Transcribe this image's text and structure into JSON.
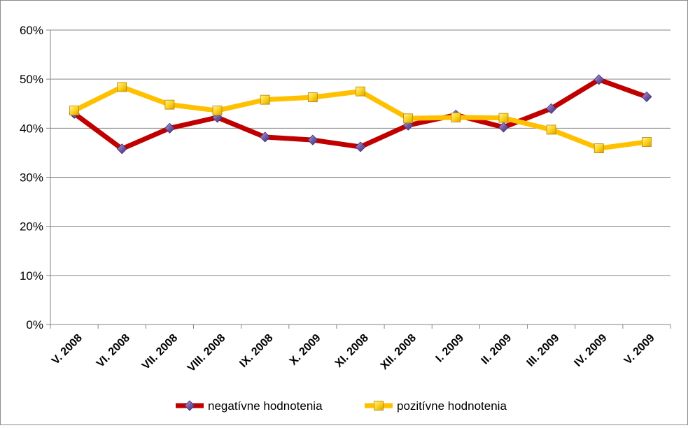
{
  "chart_data": {
    "type": "line",
    "categories": [
      "V. 2008",
      "VI. 2008",
      "VII. 2008",
      "VIII. 2008",
      "IX. 2008",
      "X. 2009",
      "XI. 2008",
      "XII. 2008",
      "I. 2009",
      "II. 2009",
      "III. 2009",
      "IV. 2009",
      "V. 2009"
    ],
    "series": [
      {
        "name": "negatívne hodnotenia",
        "color": "#c00000",
        "marker": "diamond",
        "marker_color": "#7b5fa8",
        "values": [
          43.0,
          35.8,
          40.0,
          42.2,
          38.2,
          37.6,
          36.2,
          40.6,
          42.7,
          40.2,
          44.0,
          49.9,
          46.4
        ]
      },
      {
        "name": "pozitívne hodnotenia",
        "color": "#ffc000",
        "marker": "square",
        "marker_color": "#ffd21f",
        "values": [
          43.6,
          48.4,
          44.8,
          43.6,
          45.8,
          46.3,
          47.5,
          42.0,
          42.2,
          42.1,
          39.7,
          35.9,
          37.2
        ]
      }
    ],
    "y_ticks": [
      "0%",
      "10%",
      "20%",
      "30%",
      "40%",
      "50%",
      "60%"
    ],
    "ylim": [
      0,
      60
    ],
    "grid": true,
    "legend_position": "bottom"
  }
}
